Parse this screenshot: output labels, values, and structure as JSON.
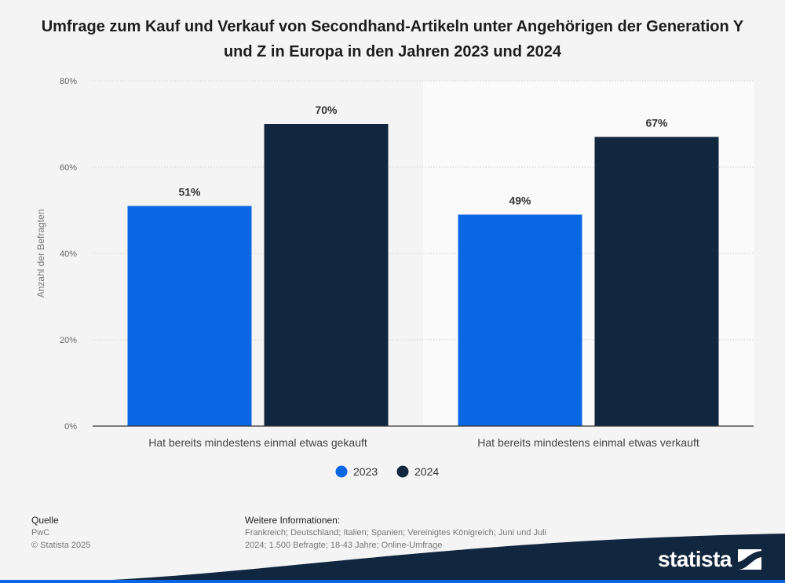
{
  "title": "Umfrage zum Kauf und Verkauf von Secondhand-Artikeln unter Angehörigen der Generation Y und Z in Europa in den Jahren 2023 und 2024",
  "chart_data": {
    "type": "bar",
    "title": "Umfrage zum Kauf und Verkauf von Secondhand-Artikeln unter Angehörigen der Generation Y und Z in Europa in den Jahren 2023 und 2024",
    "categories": [
      "Hat bereits mindestens einmal etwas gekauft",
      "Hat bereits mindestens einmal etwas verkauft"
    ],
    "series": [
      {
        "name": "2023",
        "values": [
          51,
          49
        ],
        "labels": [
          "51%",
          "49%"
        ],
        "color": "#0b66e4"
      },
      {
        "name": "2024",
        "values": [
          70,
          67
        ],
        "labels": [
          "70%",
          "67%"
        ],
        "color": "#11263f"
      }
    ],
    "ylabel": "Anzahl der Befragten",
    "xlabel": "",
    "ylim": [
      0,
      80
    ],
    "yticks": [
      0,
      20,
      40,
      60,
      80
    ],
    "ytick_labels": [
      "0%",
      "20%",
      "40%",
      "60%",
      "80%"
    ],
    "grid": true,
    "legend": "bottom-center"
  },
  "footer": {
    "source_label": "Quelle",
    "source_name": "PwC",
    "copyright": "© Statista 2025",
    "info_label": "Weitere Informationen:",
    "info_text": "Frankreich; Deutschland; Italien; Spanien; Vereinigtes Königreich; Juni und Juli 2024; 1.500 Befragte; 18-43 Jahre; Online-Umfrage"
  },
  "brand": {
    "name": "statista",
    "icon": "statista-logo-icon",
    "band_color": "#11263f"
  }
}
